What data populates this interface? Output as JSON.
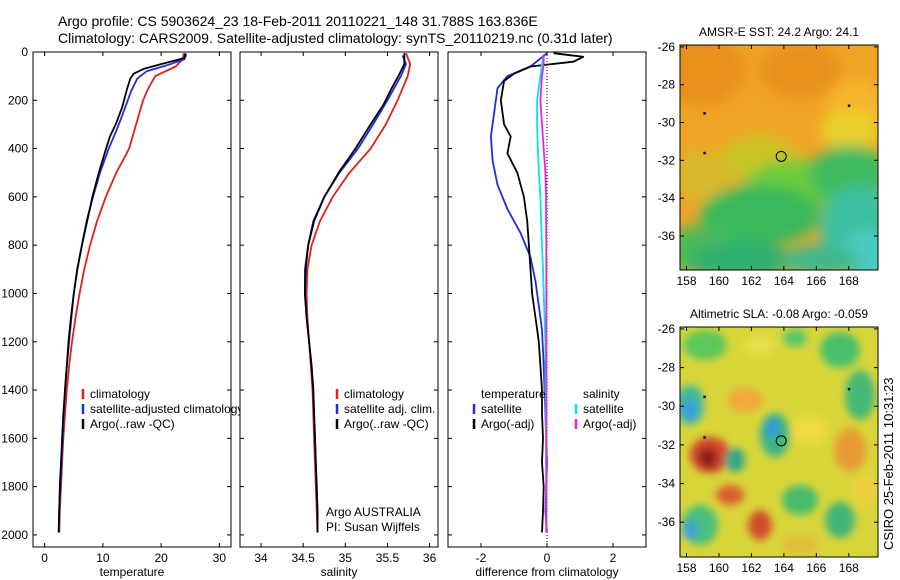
{
  "header": {
    "line1": "Argo profile: CS 5903624_23 18-Feb-2011 20110221_148 31.788S 163.836E",
    "line2": "Climatology: CARS2009. Satellite-adjusted climatology: synTS_20110219.nc (0.31d later)"
  },
  "side_text": "CSIRO 25-Feb-2011 10:31:23",
  "chart_data": [
    {
      "type": "line",
      "xlabel": "temperature",
      "xlim": [
        -2,
        32
      ],
      "xticks": [
        0,
        10,
        20,
        30
      ],
      "ylim": [
        2050,
        0
      ],
      "yticks": [
        0,
        200,
        400,
        600,
        800,
        1000,
        1200,
        1400,
        1600,
        1800,
        2000
      ],
      "legend": [
        "climatology",
        "satellite-adjusted climatology",
        "Argo(..raw -QC)"
      ],
      "legend_position": "lower-right",
      "series": [
        {
          "name": "climatology",
          "color": "#e0201a",
          "points": [
            [
              23.9,
              5
            ],
            [
              23.7,
              30
            ],
            [
              22.5,
              60
            ],
            [
              19,
              100
            ],
            [
              17.8,
              150
            ],
            [
              16.9,
              200
            ],
            [
              15.7,
              300
            ],
            [
              14.5,
              400
            ],
            [
              12.3,
              500
            ],
            [
              10.5,
              600
            ],
            [
              9,
              700
            ],
            [
              7.8,
              800
            ],
            [
              6.8,
              900
            ],
            [
              6,
              1000
            ],
            [
              5.3,
              1100
            ],
            [
              4.7,
              1200
            ],
            [
              4.2,
              1300
            ],
            [
              3.8,
              1400
            ],
            [
              3.5,
              1500
            ],
            [
              3.2,
              1600
            ],
            [
              3,
              1700
            ],
            [
              2.8,
              1800
            ],
            [
              2.6,
              1900
            ],
            [
              2.5,
              1990
            ]
          ]
        },
        {
          "name": "satellite-adjusted climatology",
          "color": "#1a2fe0",
          "points": [
            [
              24.3,
              10
            ],
            [
              24,
              30
            ],
            [
              21,
              55
            ],
            [
              17.5,
              80
            ],
            [
              15.9,
              110
            ],
            [
              14.9,
              160
            ],
            [
              13.5,
              250
            ],
            [
              12.4,
              320
            ],
            [
              11,
              400
            ],
            [
              9.5,
              500
            ],
            [
              8.3,
              600
            ],
            [
              7.2,
              700
            ],
            [
              6.4,
              800
            ],
            [
              5.6,
              900
            ],
            [
              5,
              1000
            ],
            [
              4.6,
              1100
            ],
            [
              4.2,
              1200
            ],
            [
              3.8,
              1300
            ],
            [
              3.5,
              1400
            ],
            [
              3.3,
              1500
            ],
            [
              3.1,
              1600
            ],
            [
              2.9,
              1700
            ],
            [
              2.7,
              1800
            ],
            [
              2.5,
              1900
            ],
            [
              2.5,
              1990
            ]
          ]
        },
        {
          "name": "Argo(..raw -QC)",
          "color": "#000000",
          "points": [
            [
              24.2,
              5
            ],
            [
              24,
              25
            ],
            [
              20,
              50
            ],
            [
              17,
              70
            ],
            [
              15.3,
              90
            ],
            [
              14.7,
              110
            ],
            [
              14.2,
              150
            ],
            [
              13.3,
              230
            ],
            [
              12.2,
              300
            ],
            [
              11.2,
              350
            ],
            [
              10.3,
              420
            ],
            [
              9.3,
              500
            ],
            [
              8.2,
              600
            ],
            [
              7.3,
              700
            ],
            [
              6.4,
              800
            ],
            [
              5.6,
              900
            ],
            [
              5,
              1000
            ],
            [
              4.5,
              1100
            ],
            [
              4.1,
              1200
            ],
            [
              3.8,
              1300
            ],
            [
              3.5,
              1400
            ],
            [
              3.2,
              1500
            ],
            [
              3,
              1600
            ],
            [
              2.8,
              1700
            ],
            [
              2.6,
              1800
            ],
            [
              2.5,
              1900
            ],
            [
              2.4,
              1990
            ]
          ]
        }
      ]
    },
    {
      "type": "line",
      "xlabel": "salinity",
      "xlim": [
        33.75,
        36.1
      ],
      "xticks": [
        34,
        34.5,
        35,
        35.5,
        36
      ],
      "ylim": [
        2050,
        0
      ],
      "yticks": [
        0,
        200,
        400,
        600,
        800,
        1000,
        1200,
        1400,
        1600,
        1800,
        2000
      ],
      "legend": [
        "climatology",
        "satellite adj. clim.",
        "Argo(..raw -QC)"
      ],
      "legend_position": "lower-right",
      "annotation": [
        "Argo AUSTRALIA",
        "PI: Susan Wijffels"
      ],
      "series": [
        {
          "name": "climatology",
          "color": "#e0201a",
          "points": [
            [
              35.72,
              5
            ],
            [
              35.77,
              50
            ],
            [
              35.74,
              100
            ],
            [
              35.62,
              200
            ],
            [
              35.48,
              300
            ],
            [
              35.3,
              400
            ],
            [
              35.05,
              500
            ],
            [
              34.85,
              600
            ],
            [
              34.7,
              700
            ],
            [
              34.6,
              800
            ],
            [
              34.55,
              900
            ],
            [
              34.54,
              1000
            ],
            [
              34.55,
              1100
            ],
            [
              34.57,
              1200
            ],
            [
              34.59,
              1300
            ],
            [
              34.61,
              1400
            ],
            [
              34.62,
              1500
            ],
            [
              34.63,
              1600
            ],
            [
              34.64,
              1700
            ],
            [
              34.65,
              1800
            ],
            [
              34.66,
              1900
            ],
            [
              34.67,
              1990
            ]
          ]
        },
        {
          "name": "satellite adj. clim.",
          "color": "#1a2fe0",
          "points": [
            [
              35.68,
              15
            ],
            [
              35.72,
              50
            ],
            [
              35.66,
              100
            ],
            [
              35.5,
              200
            ],
            [
              35.33,
              300
            ],
            [
              35.15,
              400
            ],
            [
              34.93,
              500
            ],
            [
              34.75,
              600
            ],
            [
              34.62,
              700
            ],
            [
              34.56,
              800
            ],
            [
              34.52,
              900
            ],
            [
              34.52,
              1000
            ],
            [
              34.54,
              1100
            ],
            [
              34.57,
              1200
            ],
            [
              34.6,
              1300
            ],
            [
              34.62,
              1400
            ],
            [
              34.63,
              1500
            ],
            [
              34.64,
              1600
            ],
            [
              34.65,
              1700
            ],
            [
              34.66,
              1800
            ],
            [
              34.67,
              1900
            ],
            [
              34.67,
              1990
            ]
          ]
        },
        {
          "name": "Argo(..raw -QC)",
          "color": "#000000",
          "points": [
            [
              35.7,
              5
            ],
            [
              35.7,
              50
            ],
            [
              35.63,
              100
            ],
            [
              35.55,
              150
            ],
            [
              35.45,
              220
            ],
            [
              35.3,
              300
            ],
            [
              35.12,
              400
            ],
            [
              34.92,
              500
            ],
            [
              34.75,
              600
            ],
            [
              34.63,
              700
            ],
            [
              34.56,
              800
            ],
            [
              34.53,
              900
            ],
            [
              34.52,
              1000
            ],
            [
              34.54,
              1100
            ],
            [
              34.57,
              1200
            ],
            [
              34.6,
              1300
            ],
            [
              34.62,
              1400
            ],
            [
              34.63,
              1500
            ],
            [
              34.64,
              1600
            ],
            [
              34.65,
              1700
            ],
            [
              34.66,
              1800
            ],
            [
              34.67,
              1900
            ],
            [
              34.67,
              1990
            ]
          ]
        }
      ]
    },
    {
      "type": "line",
      "xlabel": "difference from climatology",
      "xlim": [
        -3,
        3
      ],
      "xticks": [
        -2,
        0,
        2
      ],
      "ylim": [
        2050,
        0
      ],
      "yticks": [
        0,
        200,
        400,
        600,
        800,
        1000,
        1200,
        1400,
        1600,
        1800,
        2000
      ],
      "legend_groups": [
        {
          "title": "temperature",
          "items": [
            "satellite",
            "Argo(-adj)"
          ]
        },
        {
          "title": "salinity",
          "items": [
            "satellite",
            "Argo(-adj)"
          ]
        }
      ],
      "series": [
        {
          "name": "temperature satellite",
          "color": "#1a2fe0",
          "points": [
            [
              0,
              5
            ],
            [
              -0.5,
              60
            ],
            [
              -1.2,
              100
            ],
            [
              -1.5,
              150
            ],
            [
              -1.6,
              250
            ],
            [
              -1.7,
              350
            ],
            [
              -1.65,
              450
            ],
            [
              -1.5,
              550
            ],
            [
              -1.2,
              650
            ],
            [
              -0.8,
              750
            ],
            [
              -0.5,
              850
            ],
            [
              -0.35,
              950
            ],
            [
              -0.25,
              1050
            ],
            [
              -0.15,
              1150
            ],
            [
              -0.1,
              1300
            ],
            [
              -0.05,
              1500
            ],
            [
              0,
              1700
            ],
            [
              -0.05,
              1900
            ],
            [
              0,
              1990
            ]
          ]
        },
        {
          "name": "temperature Argo(-adj)",
          "color": "#000000",
          "points": [
            [
              0.2,
              5
            ],
            [
              1.1,
              20
            ],
            [
              0.8,
              40
            ],
            [
              -0.5,
              60
            ],
            [
              -1,
              90
            ],
            [
              -1.3,
              120
            ],
            [
              -1.4,
              200
            ],
            [
              -1.3,
              300
            ],
            [
              -1.1,
              350
            ],
            [
              -1.2,
              420
            ],
            [
              -0.9,
              500
            ],
            [
              -0.7,
              600
            ],
            [
              -0.6,
              700
            ],
            [
              -0.55,
              800
            ],
            [
              -0.5,
              900
            ],
            [
              -0.45,
              1000
            ],
            [
              -0.35,
              1100
            ],
            [
              -0.25,
              1200
            ],
            [
              -0.2,
              1300
            ],
            [
              -0.15,
              1400
            ],
            [
              -0.15,
              1500
            ],
            [
              -0.12,
              1600
            ],
            [
              -0.15,
              1700
            ],
            [
              -0.1,
              1800
            ],
            [
              -0.12,
              1900
            ],
            [
              -0.15,
              1990
            ]
          ]
        },
        {
          "name": "salinity satellite",
          "color": "#00e6ee",
          "points": [
            [
              -0.1,
              10
            ],
            [
              -0.15,
              50
            ],
            [
              -0.2,
              100
            ],
            [
              -0.3,
              200
            ],
            [
              -0.3,
              300
            ],
            [
              -0.28,
              400
            ],
            [
              -0.25,
              500
            ],
            [
              -0.2,
              600
            ],
            [
              -0.18,
              700
            ],
            [
              -0.15,
              800
            ],
            [
              -0.12,
              900
            ],
            [
              -0.1,
              1000
            ],
            [
              -0.05,
              1200
            ],
            [
              -0.05,
              1400
            ],
            [
              -0.03,
              1600
            ],
            [
              -0.02,
              1800
            ],
            [
              -0.02,
              1990
            ]
          ]
        },
        {
          "name": "salinity Argo(-adj)",
          "color": "#ee22dd",
          "points": [
            [
              -0.1,
              10
            ],
            [
              -0.1,
              50
            ],
            [
              -0.15,
              100
            ],
            [
              -0.2,
              200
            ],
            [
              -0.15,
              300
            ],
            [
              -0.1,
              400
            ],
            [
              -0.05,
              500
            ],
            [
              -0.03,
              600
            ],
            [
              -0.02,
              800
            ],
            [
              -0.02,
              1000
            ],
            [
              -0.02,
              1200
            ],
            [
              -0.02,
              1400
            ],
            [
              -0.02,
              1600
            ],
            [
              -0.02,
              1800
            ],
            [
              -0.02,
              1990
            ]
          ]
        }
      ]
    },
    {
      "type": "heatmap",
      "title": "AMSR-E SST: 24.2 Argo: 24.1",
      "xlim": [
        157.6,
        169.8
      ],
      "xticks": [
        158,
        160,
        162,
        164,
        166,
        168
      ],
      "ylim": [
        -37.8,
        -25.9
      ],
      "yticks": [
        -26,
        -28,
        -30,
        -32,
        -34,
        -36
      ],
      "marker": [
        163.836,
        -31.788
      ]
    },
    {
      "type": "heatmap",
      "title": "Altimetric SLA: -0.08 Argo: -0.059",
      "xlim": [
        157.6,
        169.8
      ],
      "xticks": [
        158,
        160,
        162,
        164,
        166,
        168
      ],
      "ylim": [
        -37.8,
        -25.9
      ],
      "yticks": [
        -26,
        -28,
        -30,
        -32,
        -34,
        -36
      ],
      "marker": [
        163.836,
        -31.788
      ]
    }
  ]
}
